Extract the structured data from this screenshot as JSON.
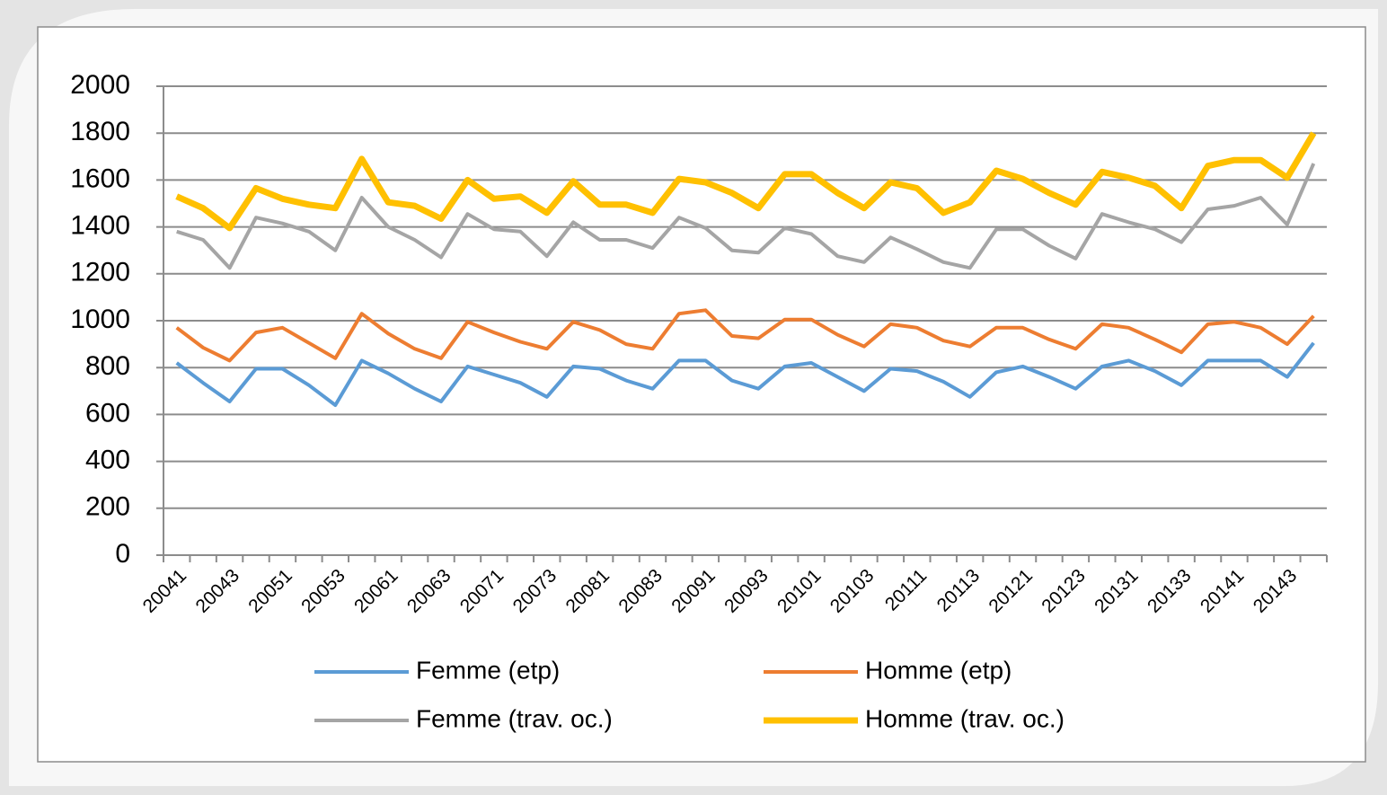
{
  "chart_data": {
    "type": "line",
    "categories": [
      "20041",
      null,
      "20043",
      null,
      "20051",
      null,
      "20053",
      null,
      "20061",
      null,
      "20063",
      null,
      "20071",
      null,
      "20073",
      null,
      "20081",
      null,
      "20083",
      null,
      "20091",
      null,
      "20093",
      null,
      "20101",
      null,
      "20103",
      null,
      "20111",
      null,
      "20113",
      null,
      "20121",
      null,
      "20123",
      null,
      "20131",
      null,
      "20133",
      null,
      "20141",
      null,
      "20143",
      null
    ],
    "series": [
      {
        "name": "Femme (etp)",
        "color": "#5b9bd5",
        "line_width": 4,
        "values": [
          820,
          735,
          655,
          795,
          795,
          725,
          640,
          830,
          775,
          710,
          655,
          805,
          770,
          735,
          675,
          805,
          795,
          745,
          710,
          830,
          830,
          745,
          710,
          805,
          820,
          760,
          700,
          795,
          785,
          740,
          675,
          780,
          805,
          760,
          710,
          805,
          830,
          785,
          725,
          830,
          830,
          830,
          760,
          905
        ]
      },
      {
        "name": "Homme (etp)",
        "color": "#ed7d31",
        "line_width": 4,
        "values": [
          970,
          885,
          830,
          950,
          970,
          905,
          840,
          1030,
          945,
          880,
          840,
          995,
          950,
          910,
          880,
          995,
          960,
          900,
          880,
          1030,
          1045,
          935,
          925,
          1005,
          1005,
          940,
          890,
          985,
          970,
          915,
          890,
          970,
          970,
          920,
          880,
          985,
          970,
          920,
          865,
          985,
          995,
          970,
          900,
          1020
        ]
      },
      {
        "name": "Femme (trav. oc.)",
        "color": "#a5a5a5",
        "line_width": 4,
        "values": [
          1380,
          1345,
          1225,
          1440,
          1415,
          1380,
          1300,
          1525,
          1400,
          1345,
          1270,
          1455,
          1390,
          1380,
          1275,
          1420,
          1345,
          1345,
          1310,
          1440,
          1395,
          1300,
          1290,
          1395,
          1370,
          1275,
          1250,
          1355,
          1305,
          1250,
          1225,
          1390,
          1390,
          1320,
          1265,
          1455,
          1420,
          1390,
          1335,
          1475,
          1490,
          1525,
          1410,
          1670
        ]
      },
      {
        "name": "Homme (trav. oc.)",
        "color": "#ffc000",
        "line_width": 7,
        "values": [
          1530,
          1480,
          1395,
          1565,
          1520,
          1495,
          1480,
          1690,
          1505,
          1490,
          1435,
          1600,
          1520,
          1530,
          1460,
          1595,
          1495,
          1495,
          1460,
          1605,
          1590,
          1545,
          1480,
          1625,
          1625,
          1545,
          1480,
          1590,
          1565,
          1460,
          1505,
          1640,
          1605,
          1545,
          1495,
          1635,
          1610,
          1575,
          1480,
          1660,
          1685,
          1685,
          1610,
          1800
        ]
      }
    ],
    "ylim": [
      0,
      2000
    ],
    "yticks": [
      0,
      200,
      400,
      600,
      800,
      1000,
      1200,
      1400,
      1600,
      1800,
      2000
    ],
    "grid": true,
    "legend": "bottom"
  }
}
